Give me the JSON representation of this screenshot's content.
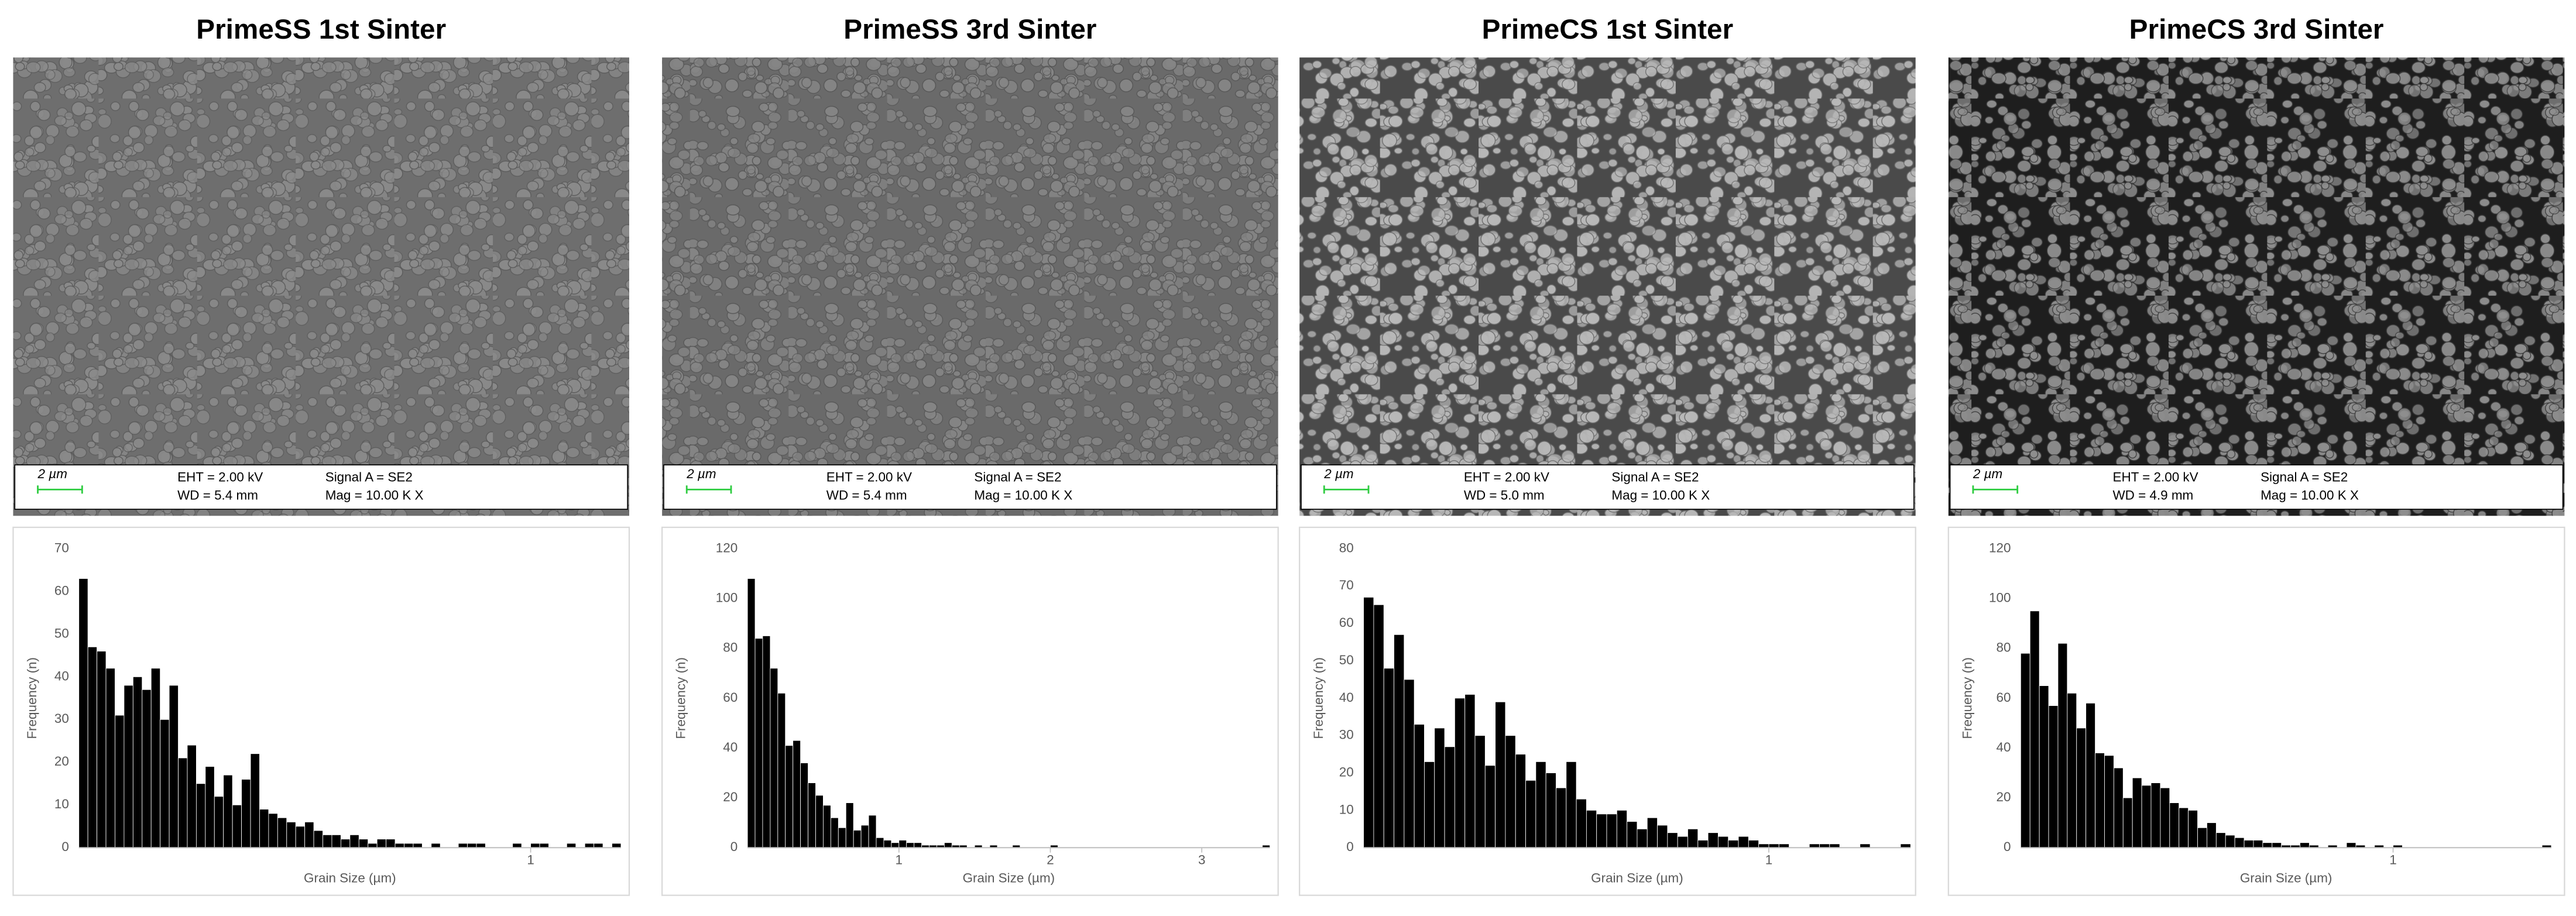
{
  "chart_data": [
    {
      "type": "histogram",
      "title": "PrimeSS 1st Sinter",
      "sem": {
        "scale_bar": "2 µm",
        "eht": "EHT =  2.00 kV",
        "wd": "WD =  5.4 mm",
        "signal": "Signal A = SE2",
        "mag": "Mag =   10.00 K X"
      },
      "xlabel": "Grain Size (µm)",
      "ylabel": "Frequency (n)",
      "color": "#000000",
      "bins": [
        0,
        0.02,
        0.04,
        0.06,
        0.08,
        0.1,
        0.12,
        0.14,
        0.16,
        0.18,
        0.2,
        0.22,
        0.24,
        0.26,
        0.28,
        0.3,
        0.32,
        0.34,
        0.36,
        0.38,
        0.4,
        0.42,
        0.44,
        0.46,
        0.48,
        0.5,
        0.52,
        0.54,
        0.56,
        0.58,
        0.6,
        0.62,
        0.64,
        0.66,
        0.68,
        0.7,
        0.72,
        0.74,
        0.76,
        0.78,
        0.8,
        0.82,
        0.84,
        0.86,
        0.88,
        0.9,
        0.92,
        0.94,
        0.96,
        0.98,
        1,
        1.02,
        1.04,
        1.06,
        1.08,
        1.1,
        1.12,
        1.14,
        1.16,
        1.18,
        1.2
      ],
      "counts": [
        63,
        47,
        46,
        42,
        31,
        38,
        40,
        37,
        42,
        30,
        38,
        21,
        24,
        15,
        19,
        12,
        17,
        10,
        16,
        22,
        9,
        8,
        7,
        6,
        5,
        6,
        4,
        3,
        3,
        2,
        3,
        2,
        1,
        2,
        2,
        1,
        1,
        1,
        0,
        1,
        0,
        0,
        1,
        1,
        1,
        0,
        0,
        0,
        1,
        0,
        1,
        1,
        0,
        0,
        1,
        0,
        1,
        1,
        0,
        1
      ],
      "xlim": [
        0,
        1.2
      ],
      "xticks": [
        1
      ],
      "ylim": [
        0,
        70
      ],
      "yticks": [
        0,
        10,
        20,
        30,
        40,
        50,
        60,
        70
      ]
    },
    {
      "type": "histogram",
      "title": "PrimeSS 3rd Sinter",
      "sem": {
        "scale_bar": "2 µm",
        "eht": "EHT =  2.00 kV",
        "wd": "WD =  5.4 mm",
        "signal": "Signal A = SE2",
        "mag": "Mag =   10.00 K X"
      },
      "xlabel": "Grain Size (µm)",
      "ylabel": "Frequency (n)",
      "color": "#000000",
      "bins": [
        0,
        0.05,
        0.1,
        0.15,
        0.2,
        0.25,
        0.3,
        0.35,
        0.4,
        0.45,
        0.5,
        0.55,
        0.6,
        0.65,
        0.7,
        0.75,
        0.8,
        0.85,
        0.9,
        0.95,
        1,
        1.05,
        1.1,
        1.15,
        1.2,
        1.25,
        1.3,
        1.35,
        1.4,
        1.45,
        1.5,
        1.55,
        1.6,
        1.65,
        1.7,
        1.75,
        1.8,
        1.85,
        1.9,
        1.95,
        2,
        2.05,
        2.1,
        2.15,
        2.2,
        2.25,
        2.3,
        2.35,
        2.4,
        2.45,
        2.5,
        2.55,
        2.6,
        2.65,
        2.7,
        2.75,
        2.8,
        2.85,
        2.9,
        2.95,
        3,
        3.05,
        3.1,
        3.15,
        3.2,
        3.25,
        3.3,
        3.35,
        3.4,
        3.45
      ],
      "counts": [
        108,
        84,
        85,
        72,
        62,
        41,
        43,
        34,
        26,
        21,
        17,
        12,
        8,
        18,
        7,
        9,
        13,
        4,
        3,
        2,
        3,
        2,
        2,
        1,
        1,
        1,
        2,
        1,
        1,
        0,
        1,
        0,
        1,
        0,
        0,
        1,
        0,
        0,
        0,
        0,
        1,
        0,
        0,
        0,
        0,
        0,
        0,
        0,
        0,
        0,
        0,
        0,
        0,
        0,
        0,
        0,
        0,
        0,
        0,
        0,
        0,
        0,
        0,
        0,
        0,
        0,
        0,
        0,
        1
      ],
      "xlim": [
        0,
        3.45
      ],
      "xticks": [
        1,
        2,
        3
      ],
      "ylim": [
        0,
        120
      ],
      "yticks": [
        0,
        20,
        40,
        60,
        80,
        100,
        120
      ]
    },
    {
      "type": "histogram",
      "title": "PrimeCS 1st Sinter",
      "sem": {
        "scale_bar": "2 µm",
        "eht": "EHT =  2.00 kV",
        "wd": "WD =  5.0 mm",
        "signal": "Signal A = SE2",
        "mag": "Mag =   10.00 K X"
      },
      "xlabel": "Grain Size (µm)",
      "ylabel": "Frequency (n)",
      "color": "#000000",
      "bins": [
        0,
        0.025,
        0.05,
        0.075,
        0.1,
        0.125,
        0.15,
        0.175,
        0.2,
        0.225,
        0.25,
        0.275,
        0.3,
        0.325,
        0.35,
        0.375,
        0.4,
        0.425,
        0.45,
        0.475,
        0.5,
        0.525,
        0.55,
        0.575,
        0.6,
        0.625,
        0.65,
        0.675,
        0.7,
        0.725,
        0.75,
        0.775,
        0.8,
        0.825,
        0.85,
        0.875,
        0.9,
        0.925,
        0.95,
        0.975,
        1,
        1.025,
        1.05,
        1.075,
        1.1,
        1.125,
        1.15,
        1.175,
        1.2,
        1.225,
        1.25,
        1.275,
        1.3,
        1.325,
        1.35
      ],
      "counts": [
        67,
        65,
        48,
        57,
        45,
        33,
        23,
        32,
        27,
        40,
        41,
        30,
        22,
        39,
        30,
        25,
        18,
        23,
        20,
        16,
        23,
        13,
        10,
        9,
        9,
        10,
        7,
        5,
        8,
        6,
        4,
        3,
        5,
        2,
        4,
        3,
        2,
        3,
        2,
        1,
        1,
        1,
        0,
        0,
        1,
        1,
        1,
        0,
        0,
        1,
        0,
        0,
        0,
        1
      ],
      "xlim": [
        0,
        1.35
      ],
      "xticks": [
        1
      ],
      "ylim": [
        0,
        80
      ],
      "yticks": [
        0,
        10,
        20,
        30,
        40,
        50,
        60,
        70,
        80
      ]
    },
    {
      "type": "histogram",
      "title": "PrimeCS 3rd Sinter",
      "sem": {
        "scale_bar": "2 µm",
        "eht": "EHT =  2.00 kV",
        "wd": "WD =  4.9 mm",
        "signal": "Signal A = SE2",
        "mag": "Mag =   10.00 K X"
      },
      "xlabel": "Grain Size (µm)",
      "ylabel": "Frequency (n)",
      "color": "#000000",
      "bins": [
        0,
        0.025,
        0.05,
        0.075,
        0.1,
        0.125,
        0.15,
        0.175,
        0.2,
        0.225,
        0.25,
        0.275,
        0.3,
        0.325,
        0.35,
        0.375,
        0.4,
        0.425,
        0.45,
        0.475,
        0.5,
        0.525,
        0.55,
        0.575,
        0.6,
        0.625,
        0.65,
        0.675,
        0.7,
        0.725,
        0.75,
        0.775,
        0.8,
        0.825,
        0.85,
        0.875,
        0.9,
        0.925,
        0.95,
        0.975,
        1,
        1.025,
        1.05,
        1.075,
        1.1,
        1.125,
        1.15,
        1.175,
        1.2,
        1.225,
        1.25,
        1.275,
        1.3,
        1.325,
        1.35,
        1.375,
        1.4,
        1.425
      ],
      "counts": [
        78,
        95,
        65,
        57,
        82,
        62,
        48,
        58,
        38,
        37,
        32,
        20,
        28,
        25,
        26,
        24,
        18,
        16,
        15,
        8,
        10,
        6,
        5,
        4,
        3,
        3,
        2,
        2,
        1,
        1,
        2,
        1,
        0,
        1,
        0,
        2,
        1,
        0,
        1,
        0,
        1,
        0,
        0,
        0,
        0,
        0,
        0,
        0,
        0,
        0,
        0,
        0,
        0,
        0,
        0,
        0,
        1
      ],
      "xlim": [
        0,
        1.425
      ],
      "xticks": [
        1
      ],
      "ylim": [
        0,
        120
      ],
      "yticks": [
        0,
        20,
        40,
        60,
        80,
        100,
        120
      ]
    }
  ]
}
